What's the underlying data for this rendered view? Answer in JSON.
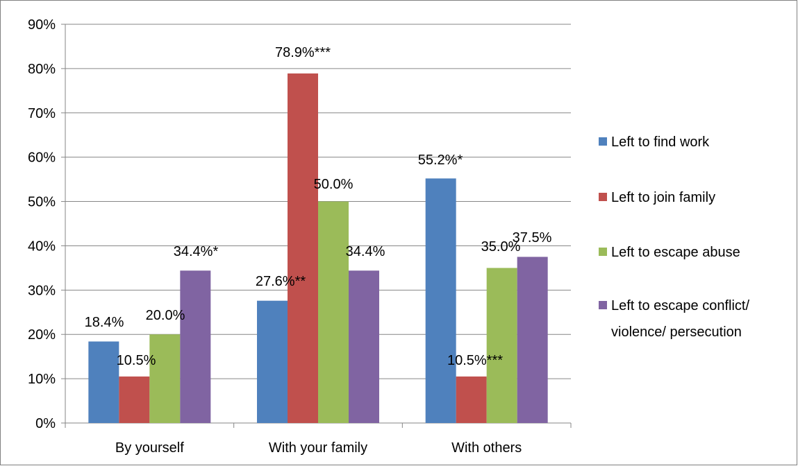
{
  "chart_data": {
    "type": "bar",
    "title": "",
    "xlabel": "",
    "ylabel": "",
    "ylim": [
      0,
      90
    ],
    "y_ticks": [
      0,
      10,
      20,
      30,
      40,
      50,
      60,
      70,
      80,
      90
    ],
    "y_tick_labels": [
      "0%",
      "10%",
      "20%",
      "30%",
      "40%",
      "50%",
      "60%",
      "70%",
      "80%",
      "90%"
    ],
    "grid": true,
    "legend_position": "right",
    "categories": [
      "By yourself",
      "With your family",
      "With others"
    ],
    "series": [
      {
        "name": "Left to find work",
        "color": "#4f81bd",
        "values": [
          18.4,
          27.6,
          55.2
        ],
        "labels": [
          "18.4%",
          "27.6%**",
          "55.2%*"
        ]
      },
      {
        "name": "Left to join family",
        "color": "#c0504d",
        "values": [
          10.5,
          78.9,
          10.5
        ],
        "labels": [
          "10.5%",
          "78.9%***",
          "10.5%***"
        ]
      },
      {
        "name": "Left to escape abuse",
        "color": "#9bbb59",
        "values": [
          20.0,
          50.0,
          35.0
        ],
        "labels": [
          "20.0%",
          "50.0%",
          "35.0%"
        ]
      },
      {
        "name": "Left to escape conflict/ violence/ persecution",
        "legend_lines": [
          "Left to escape conflict/",
          "violence/ persecution"
        ],
        "color": "#8064a2",
        "values": [
          34.4,
          34.4,
          37.5
        ],
        "labels": [
          "34.4%*",
          "34.4%",
          "37.5%"
        ]
      }
    ]
  }
}
